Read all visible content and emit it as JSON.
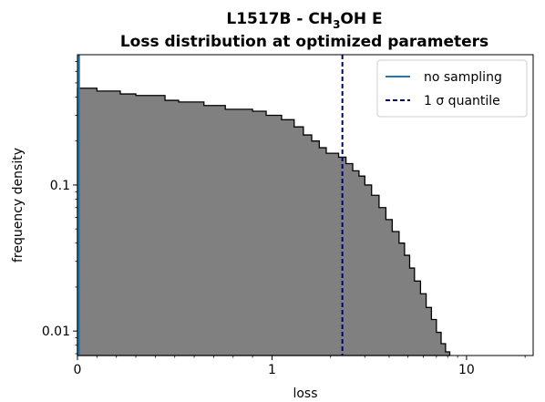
{
  "chart_data": {
    "type": "histogram-step",
    "title_line1_prefix": "L1517B - CH",
    "title_line1_sub": "3",
    "title_line1_suffix": "OH E",
    "title_line2": "Loss distribution at optimized parameters",
    "xlabel": "loss",
    "ylabel": "frequency density",
    "x_scale": "symlog",
    "x_linthresh": 1,
    "y_scale": "log",
    "xlim": [
      0,
      22
    ],
    "ylim": [
      0.0068,
      0.78
    ],
    "x_ticks": [
      {
        "value": 0,
        "label": "0"
      },
      {
        "value": 1,
        "label": "1"
      },
      {
        "value": 10,
        "label": "10"
      }
    ],
    "y_ticks": [
      {
        "value": 0.01,
        "label": "0.01"
      },
      {
        "value": 0.1,
        "label": "0.1"
      }
    ],
    "histogram": {
      "fill_color": "#808080",
      "edge_color": "#000000",
      "steps": [
        [
          0.0,
          0.46
        ],
        [
          0.1,
          0.44
        ],
        [
          0.22,
          0.42
        ],
        [
          0.3,
          0.41
        ],
        [
          0.45,
          0.38
        ],
        [
          0.52,
          0.37
        ],
        [
          0.65,
          0.35
        ],
        [
          0.76,
          0.33
        ],
        [
          0.9,
          0.32
        ],
        [
          0.97,
          0.3
        ],
        [
          1.12,
          0.28
        ],
        [
          1.3,
          0.25
        ],
        [
          1.45,
          0.22
        ],
        [
          1.6,
          0.2
        ],
        [
          1.75,
          0.18
        ],
        [
          1.9,
          0.165
        ],
        [
          2.2,
          0.155
        ],
        [
          2.4,
          0.14
        ],
        [
          2.6,
          0.125
        ],
        [
          2.8,
          0.115
        ],
        [
          3.0,
          0.1
        ],
        [
          3.25,
          0.085
        ],
        [
          3.55,
          0.07
        ],
        [
          3.85,
          0.058
        ],
        [
          4.15,
          0.048
        ],
        [
          4.5,
          0.04
        ],
        [
          4.8,
          0.033
        ],
        [
          5.1,
          0.027
        ],
        [
          5.4,
          0.022
        ],
        [
          5.8,
          0.018
        ],
        [
          6.2,
          0.0145
        ],
        [
          6.6,
          0.012
        ],
        [
          7.0,
          0.0098
        ],
        [
          7.4,
          0.0082
        ],
        [
          7.8,
          0.0072
        ],
        [
          8.2,
          0.0068
        ]
      ],
      "end": 8.2
    },
    "no_sampling_line": {
      "x": 0,
      "color": "#1f77b4",
      "label": "no sampling"
    },
    "quantile_line": {
      "x": 2.3,
      "color": "#000080",
      "label": "1 σ quantile"
    },
    "legend_placement": "top-right"
  }
}
